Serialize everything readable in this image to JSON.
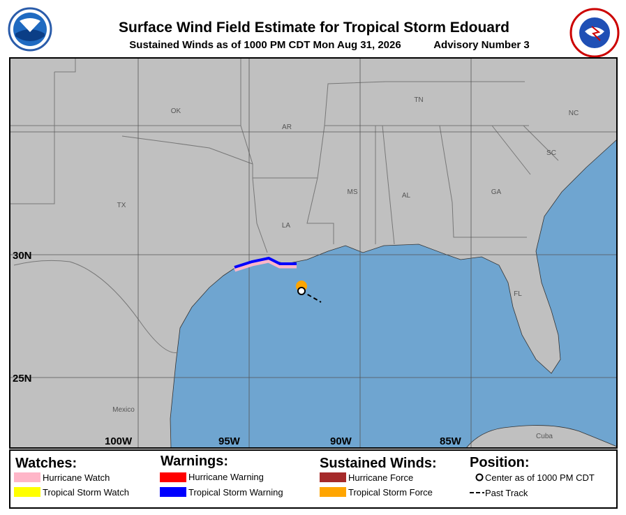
{
  "header": {
    "title": "Surface Wind Field Estimate for Tropical Storm Edouard",
    "subtitle": "Sustained Winds as of 1000 PM CDT Mon Aug 31, 2026",
    "advisory": "Advisory Number 3"
  },
  "map": {
    "places": [
      "OK",
      "AR",
      "TN",
      "NC",
      "SC",
      "TX",
      "MS",
      "AL",
      "GA",
      "LA",
      "FL",
      "Mexico",
      "Cuba"
    ],
    "latitude_labels": [
      "30N",
      "25N"
    ],
    "longitude_labels": [
      "100W",
      "95W",
      "90W",
      "85W"
    ]
  },
  "legend": {
    "watches": {
      "title": "Watches:",
      "items": [
        "Hurricane Watch",
        "Tropical Storm Watch"
      ]
    },
    "warnings": {
      "title": "Warnings:",
      "items": [
        "Hurricane Warning",
        "Tropical Storm Warning"
      ]
    },
    "winds": {
      "title": "Sustained Winds:",
      "items": [
        "Hurricane Force",
        "Tropical Storm Force"
      ]
    },
    "position": {
      "title": "Position:",
      "items": [
        "Center as of 1000 PM CDT",
        "Past Track"
      ]
    }
  }
}
